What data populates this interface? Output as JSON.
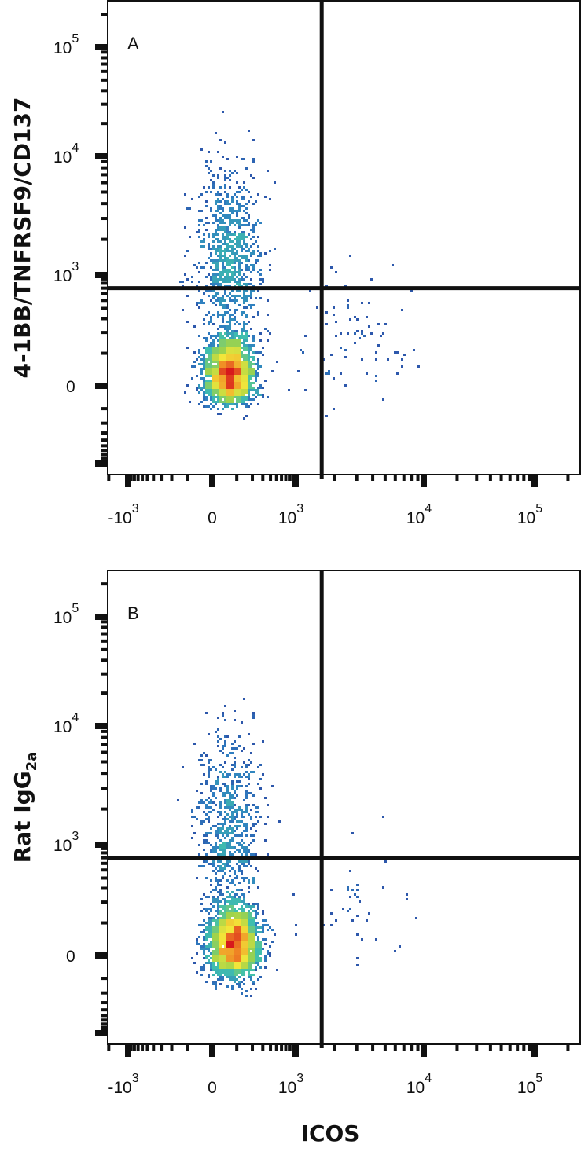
{
  "chart_data": [
    {
      "type": "scatter",
      "subtype": "flow-cytometry-density",
      "panel_label": "A",
      "xlabel": "",
      "ylabel": "4-1BB/TNFRSF9/CD137",
      "x_scale": "biexponential",
      "y_scale": "biexponential",
      "x_ticks": [
        {
          "value": -1000,
          "base": "-10",
          "exp": "3"
        },
        {
          "value": 0,
          "base": "0",
          "exp": ""
        },
        {
          "value": 1000,
          "base": "10",
          "exp": "3"
        },
        {
          "value": 10000,
          "base": "10",
          "exp": "4"
        },
        {
          "value": 100000,
          "base": "10",
          "exp": "5"
        }
      ],
      "y_ticks": [
        {
          "value": 100000,
          "base": "10",
          "exp": "5"
        },
        {
          "value": 10000,
          "base": "10",
          "exp": "4"
        },
        {
          "value": 1000,
          "base": "10",
          "exp": "3"
        },
        {
          "value": 0,
          "base": "0",
          "exp": ""
        }
      ],
      "quadrant_gate": {
        "x": 1600,
        "y": 700
      },
      "populations": [
        {
          "center": [
            60,
            40
          ],
          "spread": [
            0.45,
            0.5
          ],
          "count": 2500
        },
        {
          "center": [
            60,
            1500
          ],
          "spread": [
            0.6,
            0.9
          ],
          "count": 900
        },
        {
          "center": [
            3000,
            150
          ],
          "spread": [
            0.6,
            0.9
          ],
          "count": 80
        }
      ],
      "colormap": [
        "#2b3f9e",
        "#2f7fc1",
        "#3fbfae",
        "#9fd34a",
        "#f2e63a",
        "#f08a24",
        "#d7191c"
      ],
      "grid": false
    },
    {
      "type": "scatter",
      "subtype": "flow-cytometry-density",
      "panel_label": "B",
      "xlabel": "ICOS",
      "ylabel_main": "Rat IgG",
      "ylabel_sub": "2a",
      "x_scale": "biexponential",
      "y_scale": "biexponential",
      "x_ticks": [
        {
          "value": -1000,
          "base": "-10",
          "exp": "3"
        },
        {
          "value": 0,
          "base": "0",
          "exp": ""
        },
        {
          "value": 1000,
          "base": "10",
          "exp": "3"
        },
        {
          "value": 10000,
          "base": "10",
          "exp": "4"
        },
        {
          "value": 100000,
          "base": "10",
          "exp": "5"
        }
      ],
      "y_ticks": [
        {
          "value": 100000,
          "base": "10",
          "exp": "5"
        },
        {
          "value": 10000,
          "base": "10",
          "exp": "4"
        },
        {
          "value": 1000,
          "base": "10",
          "exp": "3"
        },
        {
          "value": 0,
          "base": "0",
          "exp": ""
        }
      ],
      "quadrant_gate": {
        "x": 1600,
        "y": 700
      },
      "populations": [
        {
          "center": [
            80,
            40
          ],
          "spread": [
            0.45,
            0.55
          ],
          "count": 2800
        },
        {
          "center": [
            60,
            1500
          ],
          "spread": [
            0.55,
            0.9
          ],
          "count": 700
        },
        {
          "center": [
            3000,
            150
          ],
          "spread": [
            0.6,
            0.8
          ],
          "count": 40
        }
      ],
      "colormap": [
        "#2b3f9e",
        "#2f7fc1",
        "#3fbfae",
        "#9fd34a",
        "#f2e63a",
        "#f08a24",
        "#d7191c"
      ],
      "grid": false
    }
  ]
}
